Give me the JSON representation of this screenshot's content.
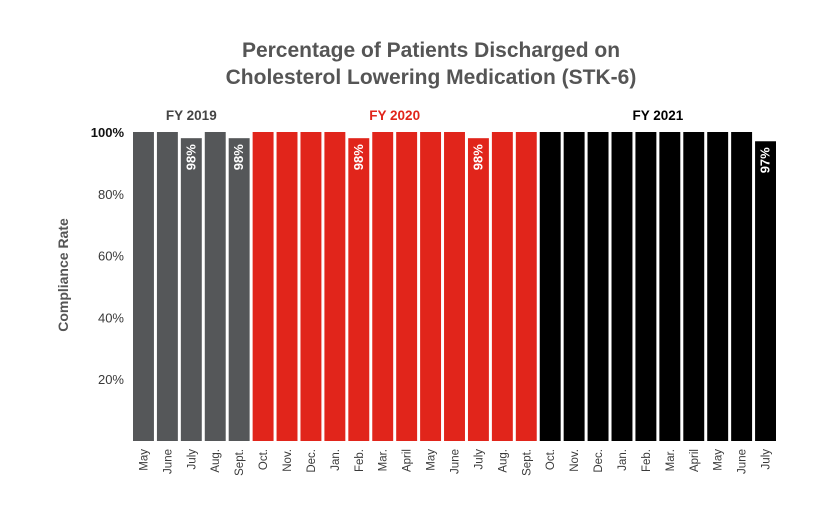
{
  "chart_data": {
    "type": "bar",
    "title": [
      "Percentage of Patients Discharged on",
      "Cholesterol Lowering Medication (STK-6)"
    ],
    "ylabel": "Compliance Rate",
    "xlabel": "",
    "ylim": [
      0,
      100
    ],
    "yticks": [
      "20%",
      "40%",
      "60%",
      "80%",
      "100%"
    ],
    "grid": false,
    "categories": [
      "May",
      "June",
      "July",
      "Aug.",
      "Sept.",
      "Oct.",
      "Nov.",
      "Dec.",
      "Jan.",
      "Feb.",
      "Mar.",
      "April",
      "May",
      "June",
      "July",
      "Aug.",
      "Sept.",
      "Oct.",
      "Nov.",
      "Dec.",
      "Jan.",
      "Feb.",
      "Mar.",
      "April",
      "May",
      "June",
      "July"
    ],
    "values": [
      100,
      100,
      98,
      100,
      98,
      100,
      100,
      100,
      100,
      98,
      100,
      100,
      100,
      100,
      98,
      100,
      100,
      100,
      100,
      100,
      100,
      100,
      100,
      100,
      100,
      100,
      97
    ],
    "data_labels": [
      "",
      "",
      "98%",
      "",
      "98%",
      "",
      "",
      "",
      "",
      "98%",
      "",
      "",
      "",
      "",
      "98%",
      "",
      "",
      "",
      "",
      "",
      "",
      "",
      "",
      "",
      "",
      "",
      "97%"
    ],
    "groups": [
      {
        "name": "FY 2019",
        "count": 5,
        "color": "#555759"
      },
      {
        "name": "FY 2020",
        "count": 12,
        "color": "#e1251b"
      },
      {
        "name": "FY 2021",
        "count": 10,
        "color": "#000000"
      }
    ]
  }
}
